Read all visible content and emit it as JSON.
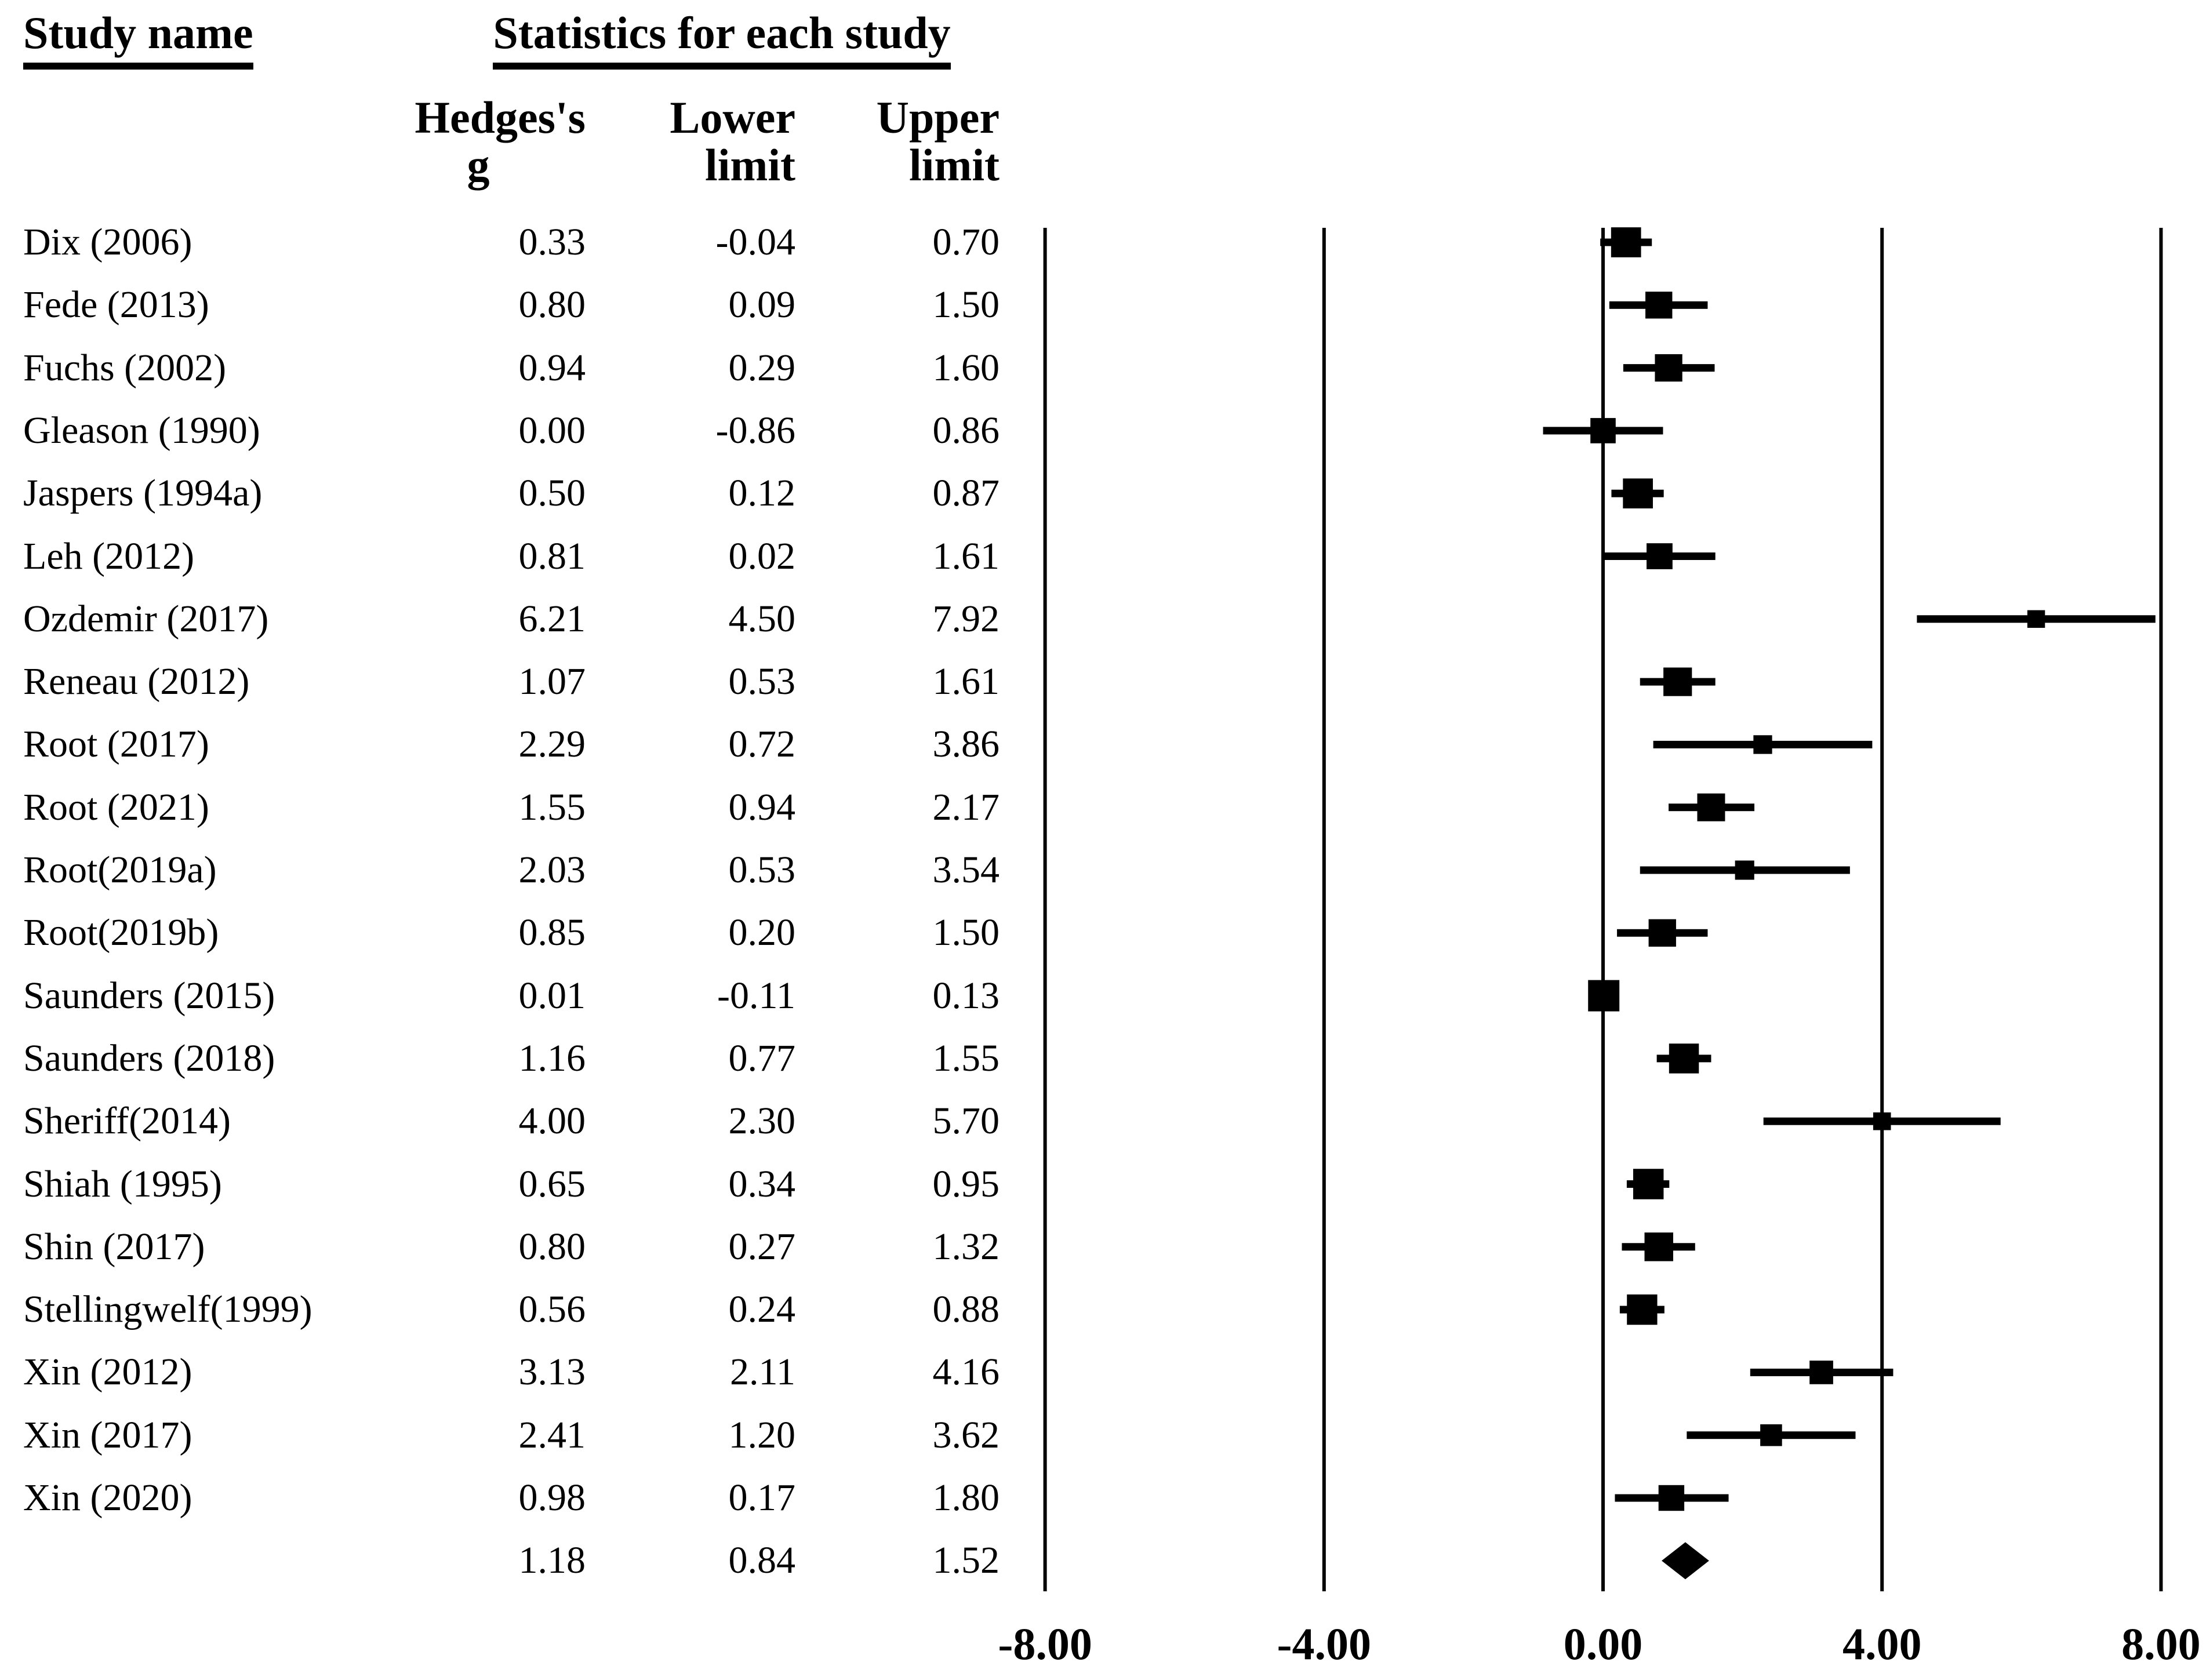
{
  "table_header": {
    "study_name": "Study name",
    "stats_group": "Statistics for each study",
    "columns": [
      {
        "line1": "Hedges's",
        "line2": "g"
      },
      {
        "line1": "Lower",
        "line2": "limit"
      },
      {
        "line1": "Upper",
        "line2": "limit"
      }
    ]
  },
  "chart_data": {
    "type": "forest",
    "effect_measure": "Hedges's g",
    "title": "Statistics for each study",
    "x_axis": {
      "range": [
        -8,
        8
      ],
      "ticks": [
        -8,
        -4,
        0,
        4,
        8
      ],
      "tick_labels": [
        "-8.00",
        "-4.00",
        "0.00",
        "4.00",
        "8.00"
      ],
      "grid": "vertical-reference-lines"
    },
    "legend_position": "none",
    "marker": "black-square-sized-by-weight",
    "studies": [
      {
        "name": "Dix (2006)",
        "g": "0.33",
        "lower": "-0.04",
        "upper": "0.70"
      },
      {
        "name": "Fede (2013)",
        "g": "0.80",
        "lower": "0.09",
        "upper": "1.50"
      },
      {
        "name": "Fuchs (2002)",
        "g": "0.94",
        "lower": "0.29",
        "upper": "1.60"
      },
      {
        "name": "Gleason (1990)",
        "g": "0.00",
        "lower": "-0.86",
        "upper": "0.86"
      },
      {
        "name": "Jaspers (1994a)",
        "g": "0.50",
        "lower": "0.12",
        "upper": "0.87"
      },
      {
        "name": "Leh (2012)",
        "g": "0.81",
        "lower": "0.02",
        "upper": "1.61"
      },
      {
        "name": "Ozdemir (2017)",
        "g": "6.21",
        "lower": "4.50",
        "upper": "7.92"
      },
      {
        "name": "Reneau (2012)",
        "g": "1.07",
        "lower": "0.53",
        "upper": "1.61"
      },
      {
        "name": "Root (2017)",
        "g": "2.29",
        "lower": "0.72",
        "upper": "3.86"
      },
      {
        "name": "Root (2021)",
        "g": "1.55",
        "lower": "0.94",
        "upper": "2.17"
      },
      {
        "name": "Root(2019a)",
        "g": "2.03",
        "lower": "0.53",
        "upper": "3.54"
      },
      {
        "name": "Root(2019b)",
        "g": "0.85",
        "lower": "0.20",
        "upper": "1.50"
      },
      {
        "name": "Saunders (2015)",
        "g": "0.01",
        "lower": "-0.11",
        "upper": "0.13"
      },
      {
        "name": "Saunders (2018)",
        "g": "1.16",
        "lower": "0.77",
        "upper": "1.55"
      },
      {
        "name": "Sheriff(2014)",
        "g": "4.00",
        "lower": "2.30",
        "upper": "5.70"
      },
      {
        "name": "Shiah (1995)",
        "g": "0.65",
        "lower": "0.34",
        "upper": "0.95"
      },
      {
        "name": "Shin (2017)",
        "g": "0.80",
        "lower": "0.27",
        "upper": "1.32"
      },
      {
        "name": "Stellingwelf(1999)",
        "g": "0.56",
        "lower": "0.24",
        "upper": "0.88"
      },
      {
        "name": "Xin (2012)",
        "g": "3.13",
        "lower": "2.11",
        "upper": "4.16"
      },
      {
        "name": "Xin (2017)",
        "g": "2.41",
        "lower": "1.20",
        "upper": "3.62"
      },
      {
        "name": "Xin (2020)",
        "g": "0.98",
        "lower": "0.17",
        "upper": "1.80"
      }
    ],
    "summary": {
      "name": "",
      "g": "1.18",
      "lower": "0.84",
      "upper": "1.52",
      "marker": "diamond"
    },
    "colors": {
      "foreground": "#000000",
      "background": "#ffffff"
    }
  }
}
